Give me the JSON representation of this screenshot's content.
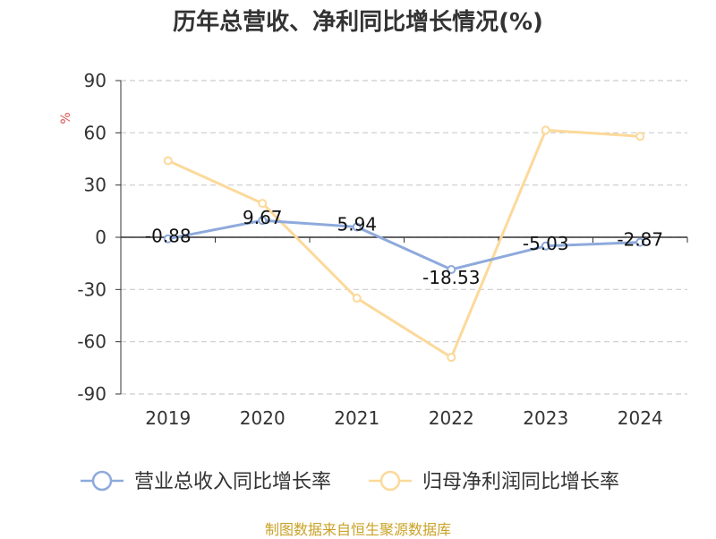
{
  "chart_data": {
    "type": "line",
    "title": "历年总营收、净利同比增长情况(%)",
    "ylabel": "%",
    "categories": [
      "2019",
      "2020",
      "2021",
      "2022",
      "2023",
      "2024"
    ],
    "ylim": [
      -90,
      90
    ],
    "yticks": [
      90,
      60,
      30,
      0,
      -30,
      -60,
      -90
    ],
    "grid": true,
    "legend_position": "bottom",
    "series": [
      {
        "name": "营业总收入同比增长率",
        "color": "#8eaadc",
        "values": [
          -0.88,
          9.67,
          5.94,
          -18.53,
          -5.03,
          -2.87
        ],
        "labels": [
          "-0.88",
          "9.67",
          "5.94",
          "-18.53",
          "-5.03",
          "-2.87"
        ]
      },
      {
        "name": "归母净利润同比增长率",
        "color": "#fcd99a",
        "values": [
          44,
          19.5,
          -35,
          -69,
          61.5,
          58
        ],
        "labels": []
      }
    ]
  },
  "footer": "制图数据来自恒生聚源数据库"
}
